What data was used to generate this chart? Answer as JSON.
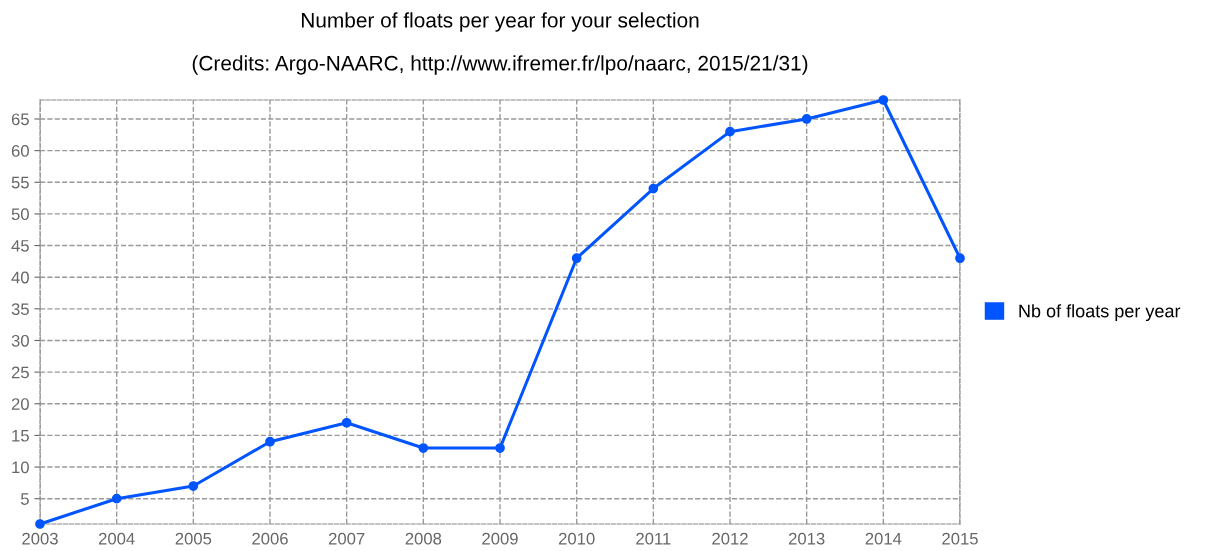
{
  "chart_data": {
    "type": "line",
    "title": "Number of floats per year for your selection",
    "subtitle": "(Credits: Argo-NAARC, http://www.ifremer.fr/lpo/naarc, 2015/21/31)",
    "categories": [
      "2003",
      "2004",
      "2005",
      "2006",
      "2007",
      "2008",
      "2009",
      "2010",
      "2011",
      "2012",
      "2013",
      "2014",
      "2015"
    ],
    "series": [
      {
        "name": "Nb of floats per year",
        "color": "#0055ff",
        "values": [
          1,
          5,
          7,
          14,
          17,
          13,
          13,
          43,
          54,
          63,
          65,
          68,
          43
        ]
      }
    ],
    "ylim": [
      1,
      68
    ],
    "yticks": [
      5,
      10,
      15,
      20,
      25,
      30,
      35,
      40,
      45,
      50,
      55,
      60,
      65
    ],
    "grid": true,
    "legend": "right",
    "marker": "circle",
    "line_style": "solid"
  }
}
